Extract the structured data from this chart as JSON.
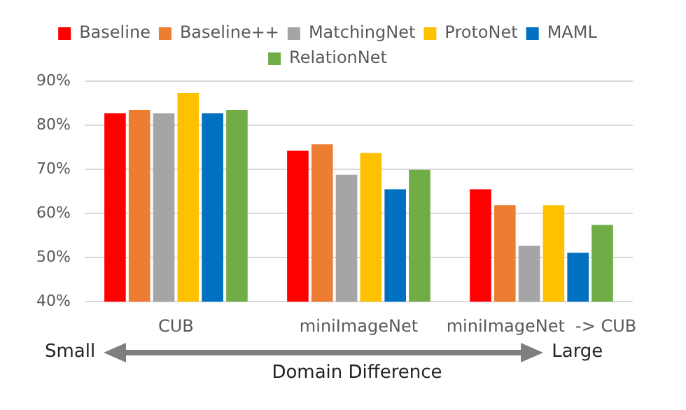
{
  "chart_data": {
    "type": "bar",
    "categories": [
      "CUB",
      "miniImageNet",
      "miniImageNet  -> CUB"
    ],
    "series": [
      {
        "name": "Baseline",
        "color": "#ff0000",
        "values": [
          82.7,
          74.2,
          65.5
        ]
      },
      {
        "name": "Baseline++",
        "color": "#ed7d31",
        "values": [
          83.5,
          75.7,
          61.9
        ]
      },
      {
        "name": "MatchingNet",
        "color": "#a5a5a5",
        "values": [
          82.7,
          68.8,
          52.7
        ]
      },
      {
        "name": "ProtoNet",
        "color": "#ffc000",
        "values": [
          87.3,
          73.7,
          61.9
        ]
      },
      {
        "name": "MAML",
        "color": "#0070c0",
        "values": [
          82.7,
          65.5,
          51.1
        ]
      },
      {
        "name": "RelationNet",
        "color": "#70ad47",
        "values": [
          83.5,
          69.9,
          57.4
        ]
      }
    ],
    "ylim": [
      40,
      90
    ],
    "yticks": [
      {
        "value": 40,
        "label": "40%"
      },
      {
        "value": 50,
        "label": "50%"
      },
      {
        "value": 60,
        "label": "60%"
      },
      {
        "value": 70,
        "label": "70%"
      },
      {
        "value": 80,
        "label": "80%"
      },
      {
        "value": 90,
        "label": "90%"
      }
    ],
    "grid": "y",
    "legend": "top",
    "xlabel": "Domain Difference",
    "annotations": [
      "Small",
      "Large"
    ]
  }
}
